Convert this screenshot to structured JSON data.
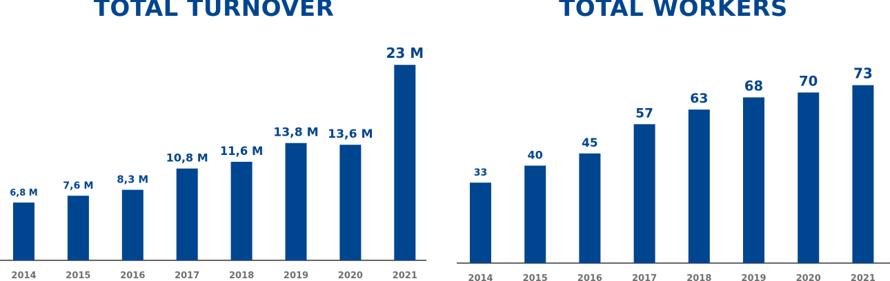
{
  "chart_data": [
    {
      "type": "bar",
      "title": "TOTAL TURNOVER",
      "categories": [
        "2014",
        "2015",
        "2016",
        "2017",
        "2018",
        "2019",
        "2020",
        "2021"
      ],
      "values": [
        6.8,
        7.6,
        8.3,
        10.8,
        11.6,
        13.8,
        13.6,
        23
      ],
      "data_labels": [
        "6,8 M",
        "7,6 M",
        "8,3 M",
        "10,8 M",
        "11,6 M",
        "13,8 M",
        "13,6 M",
        "23 M"
      ],
      "ylim": [
        0,
        23.5
      ],
      "grid": false,
      "colors": {
        "bar": "#004590",
        "title": "#004590",
        "tick": "#707070"
      }
    },
    {
      "type": "bar",
      "title": "TOTAL WORKERS",
      "categories": [
        "2014",
        "2015",
        "2016",
        "2017",
        "2018",
        "2019",
        "2020",
        "2021"
      ],
      "values": [
        33,
        40,
        45,
        57,
        63,
        68,
        70,
        73
      ],
      "data_labels": [
        "33",
        "40",
        "45",
        "57",
        "63",
        "68",
        "70",
        "73"
      ],
      "ylim": [
        0,
        104
      ],
      "grid": false,
      "colors": {
        "bar": "#004590",
        "title": "#004590",
        "tick": "#707070"
      }
    }
  ]
}
